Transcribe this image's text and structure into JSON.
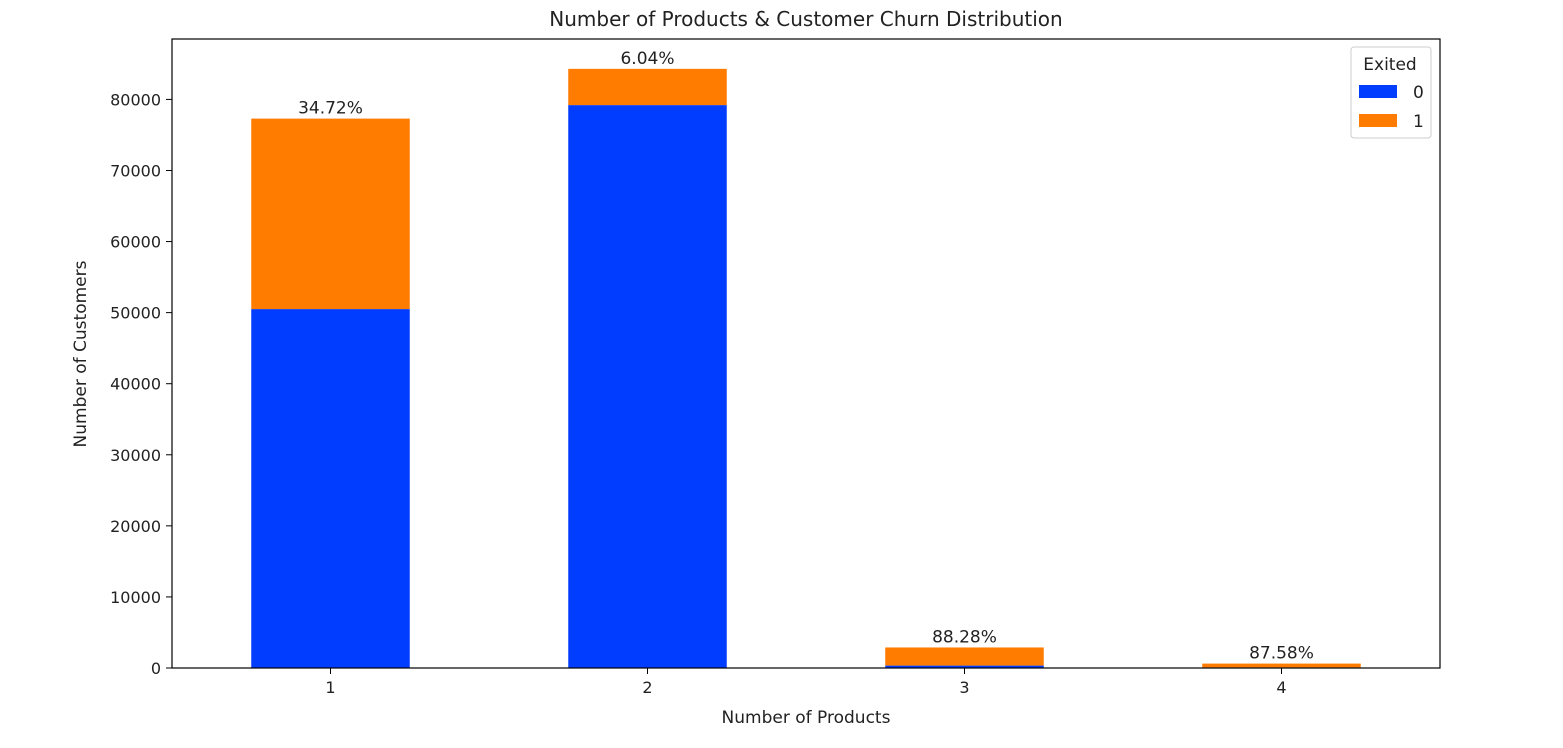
{
  "chart_data": {
    "type": "bar",
    "stacked": true,
    "title": "Number of Products & Customer Churn Distribution",
    "xlabel": "Number of Products",
    "ylabel": "Number of Customers",
    "categories": [
      "1",
      "2",
      "3",
      "4"
    ],
    "series": [
      {
        "name": "0",
        "color": "#003dff",
        "values": [
          50500,
          79200,
          340,
          80
        ]
      },
      {
        "name": "1",
        "color": "#ff7c00",
        "values": [
          26800,
          5100,
          2550,
          540
        ]
      }
    ],
    "data_labels": [
      "34.72%",
      "6.04%",
      "88.28%",
      "87.58%"
    ],
    "ylim": [
      0,
      88500
    ],
    "yticks": [
      0,
      10000,
      20000,
      30000,
      40000,
      50000,
      60000,
      70000,
      80000
    ],
    "grid": false,
    "legend": {
      "title": "Exited",
      "position": "top-right"
    }
  }
}
